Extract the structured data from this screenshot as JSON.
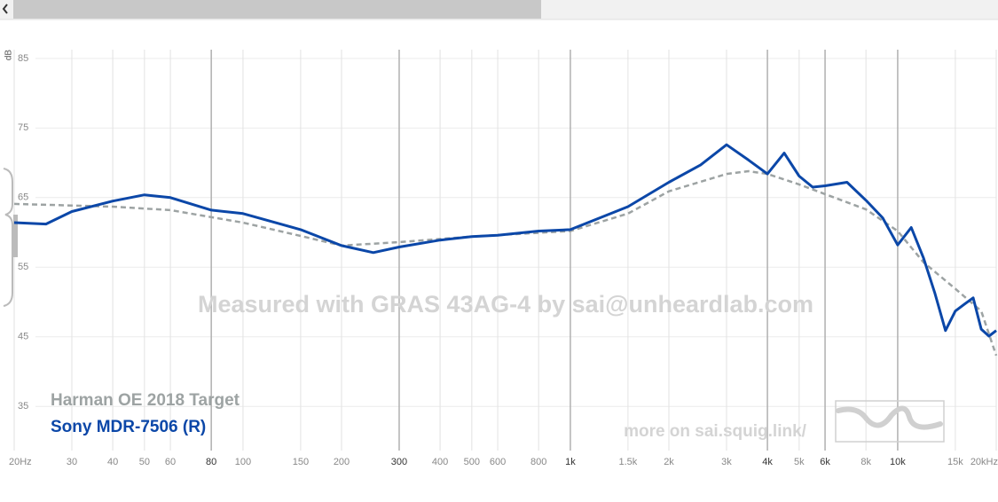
{
  "chart_data": {
    "type": "line",
    "y_label": "dB",
    "watermark": "Measured with GRAS 43AG-4 by sai@unheardlab.com",
    "footer_link": "more on sai.squig.link/",
    "x_scale": "log",
    "grid": true,
    "xlim": [
      20,
      20000
    ],
    "ylim": [
      27,
      86
    ],
    "yticks": [
      35,
      45,
      55,
      65,
      75,
      85
    ],
    "xticks": [
      {
        "value": 20,
        "label": "20Hz"
      },
      30,
      40,
      50,
      60,
      80,
      100,
      150,
      200,
      300,
      400,
      500,
      600,
      800,
      {
        "value": 1000,
        "label": "1k"
      },
      {
        "value": 1500,
        "label": "1.5k"
      },
      {
        "value": 2000,
        "label": "2k"
      },
      {
        "value": 3000,
        "label": "3k"
      },
      {
        "value": 4000,
        "label": "4k"
      },
      {
        "value": 5000,
        "label": "5k"
      },
      {
        "value": 6000,
        "label": "6k"
      },
      {
        "value": 8000,
        "label": "8k"
      },
      {
        "value": 10000,
        "label": "10k"
      },
      {
        "value": 15000,
        "label": "15k"
      },
      {
        "value": 20000,
        "label": "20kHz"
      }
    ],
    "emphasized_xticks": [
      80,
      300,
      1000,
      4000,
      6000,
      10000
    ],
    "series": [
      {
        "name": "Harman OE 2018 Target",
        "color": "#9da3a3",
        "dashed": true,
        "x": [
          20,
          40,
          60,
          100,
          150,
          200,
          300,
          500,
          1000,
          1500,
          2000,
          3000,
          3500,
          4000,
          5000,
          6000,
          8000,
          10000,
          12000,
          15000,
          18000,
          20000
        ],
        "values": [
          64.1,
          63.7,
          63.2,
          61.4,
          59.5,
          58.1,
          58.6,
          59.4,
          60.2,
          62.7,
          65.9,
          68.4,
          68.8,
          68.4,
          66.9,
          65.5,
          63.3,
          60.2,
          55.7,
          51.9,
          48.7,
          42.3
        ]
      },
      {
        "name": "Sony MDR-7506 (R)",
        "color": "#0b47a8",
        "dashed": false,
        "x": [
          20,
          25,
          30,
          40,
          50,
          60,
          80,
          100,
          150,
          200,
          250,
          300,
          400,
          500,
          600,
          800,
          1000,
          1500,
          2000,
          2500,
          3000,
          3500,
          4000,
          4500,
          5000,
          5500,
          6000,
          7000,
          8000,
          9000,
          10000,
          11000,
          12000,
          13000,
          14000,
          15000,
          16000,
          17000,
          18000,
          19000,
          20000
        ],
        "values": [
          61.4,
          61.2,
          63,
          64.5,
          65.4,
          65,
          63.2,
          62.7,
          60.4,
          58.1,
          57.1,
          57.9,
          58.9,
          59.4,
          59.6,
          60.2,
          60.4,
          63.7,
          67.2,
          69.7,
          72.6,
          70.4,
          68.4,
          71.4,
          68.1,
          66.5,
          66.7,
          67.2,
          64.6,
          62.1,
          58.2,
          60.7,
          56.3,
          51.2,
          45.9,
          48.7,
          49.7,
          50.6,
          46.1,
          45.1,
          45.9
        ]
      }
    ]
  }
}
